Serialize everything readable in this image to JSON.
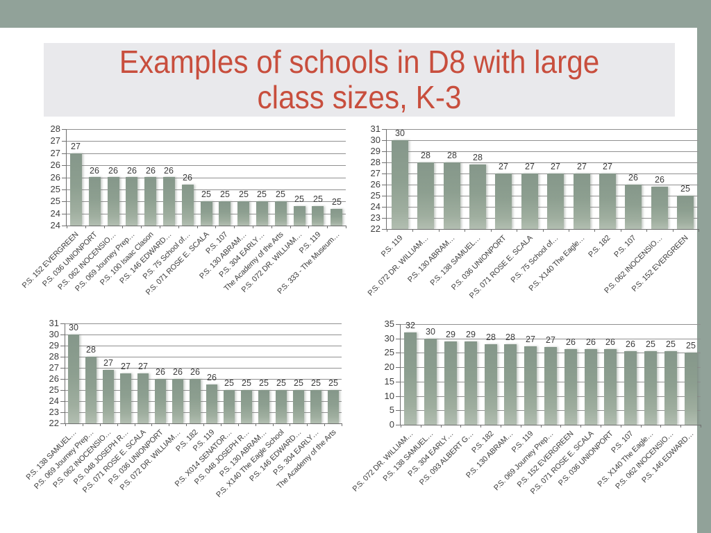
{
  "slide": {
    "title_line1": "Examples of schools in D8 with large",
    "title_line2": "class sizes, K-3",
    "colors": {
      "band_green": "#91a299",
      "title_text": "#c84e3d",
      "title_background": "#e9e9ec",
      "bar_fill": "#8c9e8f",
      "gridline": "#8f8f8f",
      "axis_text": "#3c3c3c"
    }
  },
  "chart_data": [
    {
      "type": "bar",
      "name": "top-left",
      "title": "",
      "xlabel": "",
      "ylabel": "",
      "grid": true,
      "legend": false,
      "y_min": 24,
      "y_max": 28,
      "y_ticks": [
        "28",
        "27",
        "27",
        "26",
        "26",
        "25",
        "25",
        "24",
        "24"
      ],
      "categories": [
        "P.S. 152 EVERGREEN",
        "P.S. 036 UNIONPORT",
        "P.S. 062 INOCENSIO…",
        "P.S. 069 Journey Prep…",
        "P.S. 100 Isaac Clason",
        "P.S. 146 EDWARD…",
        "P.S. 75 School of…",
        "P.S. 071 ROSE E. SCALA",
        "P.S. 107",
        "P.S. 130 ABRAM…",
        "P.S. 304 EARLY…",
        "The Academy of the Arts",
        "P.S. 072 DR. WILLIAM…",
        "P.S. 119",
        "P.S. 333 - The Museum…"
      ],
      "values": [
        27,
        26,
        26,
        26,
        26,
        26,
        26,
        25,
        25,
        25,
        25,
        25,
        25,
        25,
        25
      ],
      "values_precise": [
        27,
        26,
        26,
        26,
        26,
        26,
        25.7,
        25,
        25,
        25,
        25,
        25,
        24.8,
        24.8,
        24.7
      ]
    },
    {
      "type": "bar",
      "name": "top-right",
      "title": "",
      "xlabel": "",
      "ylabel": "",
      "grid": true,
      "legend": false,
      "y_min": 22,
      "y_max": 31,
      "y_ticks": [
        "31",
        "30",
        "29",
        "28",
        "27",
        "26",
        "25",
        "24",
        "23",
        "22"
      ],
      "categories": [
        "P.S. 119",
        "P.S. 072 DR. WILLIAM…",
        "P.S. 130 ABRAM…",
        "P.S. 138 SAMUEL…",
        "P.S. 036 UNIONPORT",
        "P.S. 071 ROSE E. SCALA",
        "P.S. 75 School of…",
        "P.S. X140 The Eagle…",
        "P.S. 182",
        "P.S. 107",
        "P.S. 062 INOCENSIO…",
        "P.S. 152 EVERGREEN"
      ],
      "values": [
        30,
        28,
        28,
        28,
        27,
        27,
        27,
        27,
        27,
        26,
        26,
        25
      ],
      "values_precise": [
        30,
        28,
        28,
        27.8,
        27,
        27,
        27,
        27,
        27,
        26,
        25.8,
        25
      ]
    },
    {
      "type": "bar",
      "name": "bottom-left",
      "title": "",
      "xlabel": "",
      "ylabel": "",
      "grid": true,
      "legend": false,
      "y_min": 22,
      "y_max": 31,
      "y_ticks": [
        "31",
        "30",
        "29",
        "28",
        "27",
        "26",
        "25",
        "24",
        "23",
        "22"
      ],
      "categories": [
        "P.S. 138 SAMUEL…",
        "P.S. 069 Journey Prep…",
        "P.S. 062 INOCENSIO…",
        "P.S. 048 JOSEPH R…",
        "P.S. 071 ROSE E. SCALA",
        "P.S. 036 UNIONPORT",
        "P.S. 072 DR. WILLIAM…",
        "P.S. 182",
        "P.S. 119",
        "P.S. X014 SENATOR…",
        "P.S. 048 JOSEPH R…",
        "P.S. 130 ABRAM…",
        "P.S. X140 The Eagle School",
        "P.S. 146 EDWARD…",
        "P.S. 304 EARLY…",
        "The Academy of the Arts"
      ],
      "values": [
        30,
        28,
        27,
        27,
        27,
        26,
        26,
        26,
        26,
        25,
        25,
        25,
        25,
        25,
        25,
        25
      ],
      "values_precise": [
        30,
        28,
        26.8,
        26.5,
        26.5,
        26,
        26,
        26,
        25.5,
        25,
        25,
        25,
        25,
        25,
        25,
        25
      ]
    },
    {
      "type": "bar",
      "name": "bottom-right",
      "title": "",
      "xlabel": "",
      "ylabel": "",
      "grid": true,
      "legend": false,
      "y_min": 0,
      "y_max": 35,
      "y_ticks": [
        "35",
        "30",
        "25",
        "20",
        "15",
        "10",
        "5",
        "0"
      ],
      "categories": [
        "P.S. 072 DR. WILLIAM…",
        "P.S. 138 SAMUEL…",
        "P.S. 304 EARLY…",
        "P.S. 093 ALBERT G…",
        "P.S. 182",
        "P.S. 130 ABRAM…",
        "P.S. 119",
        "P.S. 069 Journey Prep…",
        "P.S. 152 EVERGREEN",
        "P.S. 071 ROSE E. SCALA",
        "P.S. 036 UNIONPORT",
        "P.S. 107",
        "P.S. X140 The Eagle…",
        "P.S. 062 INOCENSIO…",
        "P.S. 146 EDWARD…"
      ],
      "values": [
        32,
        30,
        29,
        29,
        28,
        28,
        27,
        27,
        26,
        26,
        26,
        26,
        25,
        25,
        25
      ],
      "values_precise": [
        32,
        30,
        29,
        29,
        28,
        28,
        27.3,
        27,
        26.2,
        26.2,
        26.2,
        25.7,
        25.5,
        25.5,
        25
      ]
    }
  ]
}
